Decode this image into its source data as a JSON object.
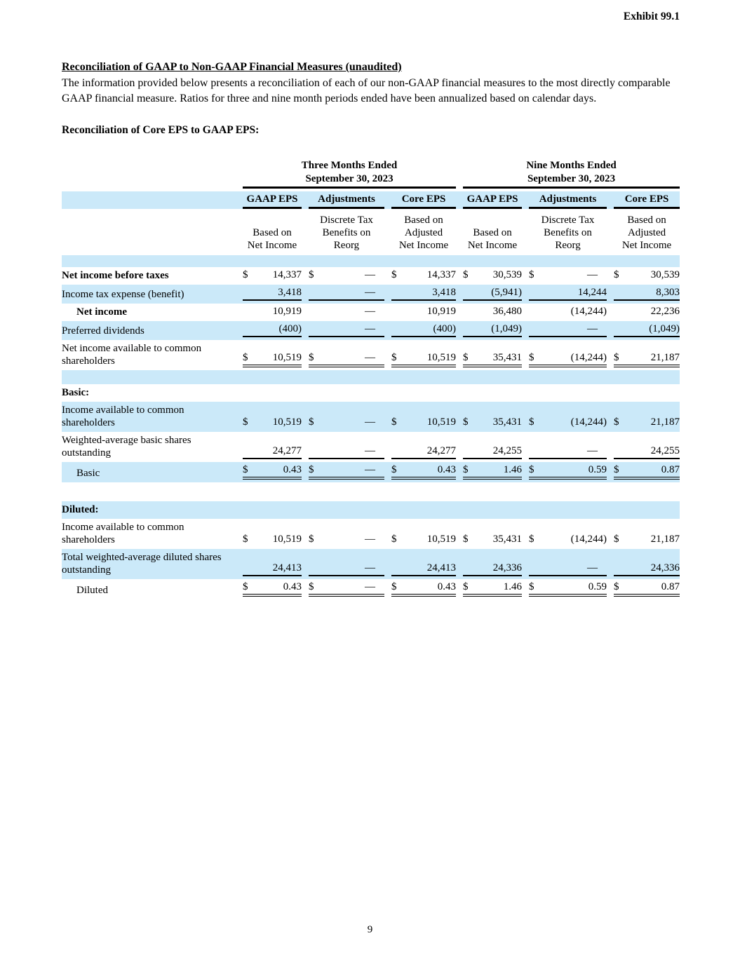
{
  "page": {
    "exhibit_label": "Exhibit 99.1",
    "page_number": "9"
  },
  "heading": {
    "title": "Reconciliation of GAAP to Non-GAAP Financial Measures (unaudited)",
    "intro": "The information provided below presents a reconciliation of each of our non-GAAP financial measures to the most directly comparable GAAP financial measure. Ratios for three and nine month periods ended have been annualized based on calendar days.",
    "table_caption": "Reconciliation of Core EPS to GAAP EPS:"
  },
  "colors": {
    "row_highlight": "#cbe9f9",
    "text": "#000000"
  },
  "table": {
    "groups": [
      {
        "title": "Three Months Ended\nSeptember 30, 2023"
      },
      {
        "title": "Nine Months Ended\nSeptember 30, 2023"
      }
    ],
    "col_headers": [
      "GAAP EPS",
      "Adjustments",
      "Core EPS",
      "GAAP EPS",
      "Adjustments",
      "Core EPS"
    ],
    "sub_headers": [
      "Based on\nNet Income",
      "Discrete Tax\nBenefits on\nReorg",
      "Based on\nAdjusted\nNet Income",
      "Based on\nNet Income",
      "Discrete Tax\nBenefits on\nReorg",
      "Based on\nAdjusted\nNet Income"
    ],
    "rows": [
      {
        "type": "spacer",
        "bg": "blue",
        "height": 17
      },
      {
        "type": "data",
        "bg": "white",
        "bold": true,
        "label": "Net income before taxes",
        "u": "none",
        "cells": [
          {
            "c": "$",
            "v": "14,337"
          },
          {
            "c": "$",
            "v": "—",
            "d": true
          },
          {
            "c": "$",
            "v": "14,337"
          },
          {
            "c": "$",
            "v": "30,539"
          },
          {
            "c": "$",
            "v": "—",
            "d": true
          },
          {
            "c": "$",
            "v": "30,539"
          }
        ]
      },
      {
        "type": "data",
        "bg": "blue",
        "label": "Income tax expense (benefit)",
        "u": "single",
        "cells": [
          {
            "v": "3,418"
          },
          {
            "v": "—",
            "d": true
          },
          {
            "v": "3,418"
          },
          {
            "v": "(5,941)"
          },
          {
            "v": "14,244"
          },
          {
            "v": "8,303"
          }
        ]
      },
      {
        "type": "data",
        "bg": "white",
        "bold": true,
        "indent": true,
        "label": "Net income",
        "u": "none",
        "cells": [
          {
            "v": "10,919"
          },
          {
            "v": "—",
            "d": true
          },
          {
            "v": "10,919"
          },
          {
            "v": "36,480"
          },
          {
            "v": "(14,244)"
          },
          {
            "v": "22,236"
          }
        ]
      },
      {
        "type": "data",
        "bg": "blue",
        "label": "Preferred dividends",
        "u": "single",
        "cells": [
          {
            "v": "(400)"
          },
          {
            "v": "—",
            "d": true
          },
          {
            "v": "(400)"
          },
          {
            "v": "(1,049)"
          },
          {
            "v": "—",
            "d": true
          },
          {
            "v": "(1,049)"
          }
        ]
      },
      {
        "type": "data",
        "bg": "white",
        "label": "Net income available to common shareholders",
        "u": "double",
        "cells": [
          {
            "c": "$",
            "v": "10,519"
          },
          {
            "c": "$",
            "v": "—",
            "d": true
          },
          {
            "c": "$",
            "v": "10,519"
          },
          {
            "c": "$",
            "v": "35,431"
          },
          {
            "c": "$",
            "v": "(14,244)"
          },
          {
            "c": "$",
            "v": "21,187"
          }
        ]
      },
      {
        "type": "spacer",
        "bg": "blue",
        "height": 20
      },
      {
        "type": "data",
        "bg": "white",
        "bold": true,
        "label": "Basic:",
        "u": "none",
        "cells": []
      },
      {
        "type": "data",
        "bg": "blue",
        "label": "Income available to common shareholders",
        "u": "none",
        "cells": [
          {
            "c": "$",
            "v": "10,519"
          },
          {
            "c": "$",
            "v": "—",
            "d": true
          },
          {
            "c": "$",
            "v": "10,519"
          },
          {
            "c": "$",
            "v": "35,431"
          },
          {
            "c": "$",
            "v": "(14,244)"
          },
          {
            "c": "$",
            "v": "21,187"
          }
        ]
      },
      {
        "type": "data",
        "bg": "white",
        "label": "Weighted-average basic shares outstanding",
        "u": "single",
        "cells": [
          {
            "v": "24,277"
          },
          {
            "v": "—",
            "d": true
          },
          {
            "v": "24,277"
          },
          {
            "v": "24,255"
          },
          {
            "v": "—",
            "d": true
          },
          {
            "v": "24,255"
          }
        ]
      },
      {
        "type": "data",
        "bg": "blue",
        "indent": true,
        "label": "Basic",
        "u": "double",
        "cells": [
          {
            "c": "$",
            "v": "0.43"
          },
          {
            "c": "$",
            "v": "—",
            "d": true
          },
          {
            "c": "$",
            "v": "0.43"
          },
          {
            "c": "$",
            "v": "1.46"
          },
          {
            "c": "$",
            "v": "0.59"
          },
          {
            "c": "$",
            "v": "0.87"
          }
        ]
      },
      {
        "type": "spacer",
        "bg": "white",
        "height": 27
      },
      {
        "type": "data",
        "bg": "blue",
        "bold": true,
        "label": "Diluted:",
        "u": "none",
        "cells": []
      },
      {
        "type": "data",
        "bg": "white",
        "label": "Income available to common shareholders",
        "u": "none",
        "cells": [
          {
            "c": "$",
            "v": "10,519"
          },
          {
            "c": "$",
            "v": "—",
            "d": true
          },
          {
            "c": "$",
            "v": "10,519"
          },
          {
            "c": "$",
            "v": "35,431"
          },
          {
            "c": "$",
            "v": "(14,244)"
          },
          {
            "c": "$",
            "v": "21,187"
          }
        ]
      },
      {
        "type": "data",
        "bg": "blue",
        "label": "Total weighted-average diluted shares outstanding",
        "u": "single",
        "cells": [
          {
            "v": "24,413"
          },
          {
            "v": "—",
            "d": true
          },
          {
            "v": "24,413"
          },
          {
            "v": "24,336"
          },
          {
            "v": "—",
            "d": true
          },
          {
            "v": "24,336"
          }
        ]
      },
      {
        "type": "data",
        "bg": "white",
        "indent": true,
        "label": "Diluted",
        "u": "double",
        "cells": [
          {
            "c": "$",
            "v": "0.43"
          },
          {
            "c": "$",
            "v": "—",
            "d": true
          },
          {
            "c": "$",
            "v": "0.43"
          },
          {
            "c": "$",
            "v": "1.46"
          },
          {
            "c": "$",
            "v": "0.59"
          },
          {
            "c": "$",
            "v": "0.87"
          }
        ]
      }
    ]
  }
}
